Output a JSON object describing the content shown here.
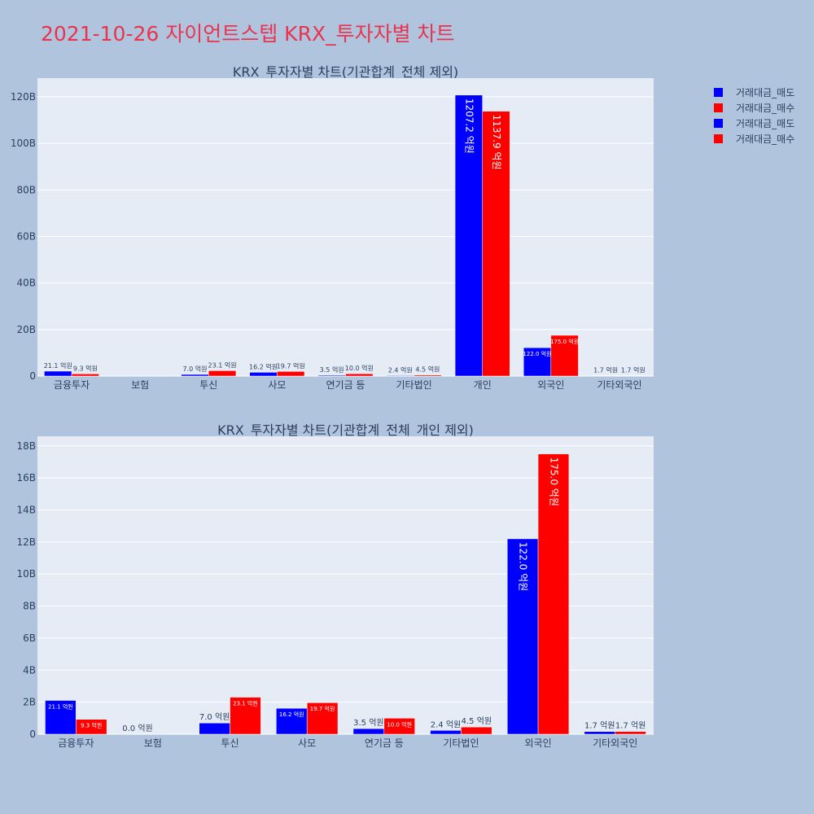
{
  "page_title": "2021-10-26 자이언트스텝 KRX_투자자별 차트",
  "colors": {
    "sell": "#0000ff",
    "buy": "#ff0000",
    "title": "#e8344e",
    "plot_bg": "#e5ecf6",
    "page_bg": "#b0c4de"
  },
  "legend": [
    {
      "name": "거래대금_매도",
      "color": "#0000ff"
    },
    {
      "name": "거래대금_매수",
      "color": "#ff0000"
    },
    {
      "name": "거래대금_매도",
      "color": "#0000ff"
    },
    {
      "name": "거래대금_매수",
      "color": "#ff0000"
    }
  ],
  "chart_data": [
    {
      "type": "bar",
      "title": "KRX_투자자별 차트(기관합계_전체 제외)",
      "categories": [
        "금융투자",
        "보험",
        "투신",
        "사모",
        "연기금 등",
        "기타법인",
        "개인",
        "외국인",
        "기타외국인"
      ],
      "series": [
        {
          "name": "거래대금_매도",
          "color": "#0000ff",
          "values": [
            2110000000,
            0,
            700000000,
            1620000000,
            350000000,
            240000000,
            120720000000,
            12200000000,
            170000000
          ],
          "labels": [
            "21.1 억원",
            "",
            "7.0 억원",
            "16.2 억원",
            "3.5 억원",
            "2.4 억원",
            "1207.2 억원",
            "122.0 억원",
            "1.7 억원"
          ]
        },
        {
          "name": "거래대금_매수",
          "color": "#ff0000",
          "values": [
            930000000,
            0,
            2310000000,
            1970000000,
            1000000000,
            450000000,
            113790000000,
            17500000000,
            170000000
          ],
          "labels": [
            "9.3 억원",
            "",
            "23.1 억원",
            "19.7 억원",
            "10.0 억원",
            "4.5 억원",
            "1137.9 억원",
            "175.0 억원",
            "1.7 억원"
          ]
        }
      ],
      "ylim": [
        0,
        128000000000
      ],
      "yticks": [
        0,
        20000000000,
        40000000000,
        60000000000,
        80000000000,
        100000000000,
        120000000000
      ],
      "ytick_labels": [
        "0",
        "20B",
        "40B",
        "60B",
        "80B",
        "100B",
        "120B"
      ],
      "grid": true
    },
    {
      "type": "bar",
      "title": "KRX_투자자별 차트(기관합계_전체_개인 제외)",
      "categories": [
        "금융투자",
        "보험",
        "투신",
        "사모",
        "연기금 등",
        "기타법인",
        "외국인",
        "기타외국인"
      ],
      "series": [
        {
          "name": "거래대금_매도",
          "color": "#0000ff",
          "values": [
            2110000000,
            0,
            700000000,
            1620000000,
            350000000,
            240000000,
            12200000000,
            170000000
          ],
          "labels": [
            "21.1 억원",
            "0.0 억원",
            "7.0 억원",
            "16.2 억원",
            "3.5 억원",
            "2.4 억원",
            "122.0 억원",
            "1.7 억원"
          ]
        },
        {
          "name": "거래대금_매수",
          "color": "#ff0000",
          "values": [
            930000000,
            0,
            2310000000,
            1970000000,
            1000000000,
            450000000,
            17500000000,
            170000000
          ],
          "labels": [
            "9.3 억원",
            "",
            "23.1 억원",
            "19.7 억원",
            "10.0 억원",
            "4.5 억원",
            "175.0 억원",
            "1.7 억원"
          ]
        }
      ],
      "ylim": [
        0,
        18600000000
      ],
      "yticks": [
        0,
        2000000000,
        4000000000,
        6000000000,
        8000000000,
        10000000000,
        12000000000,
        14000000000,
        16000000000,
        18000000000
      ],
      "ytick_labels": [
        "0",
        "2B",
        "4B",
        "6B",
        "8B",
        "10B",
        "12B",
        "14B",
        "16B",
        "18B"
      ],
      "grid": true
    }
  ]
}
